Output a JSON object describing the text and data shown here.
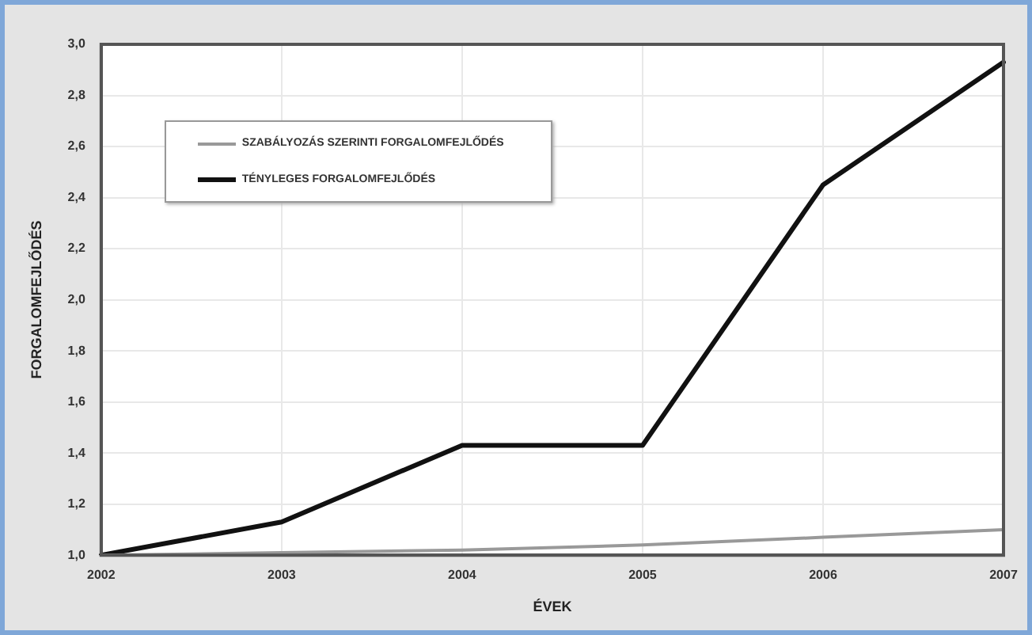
{
  "chart_data": {
    "type": "line",
    "xlabel": "ÉVEK",
    "ylabel": "FORGALOMFEJLŐDÉS",
    "categories": [
      "2002",
      "2003",
      "2004",
      "2005",
      "2006",
      "2007"
    ],
    "series": [
      {
        "name": "SZABÁLYOZÁS SZERINTI FORGALOMFEJLŐDÉS",
        "color": "#999999",
        "values": [
          1.0,
          1.01,
          1.02,
          1.04,
          1.07,
          1.1
        ]
      },
      {
        "name": "TÉNYLEGES FORGALOMFEJLŐDÉS",
        "color": "#111111",
        "values": [
          1.0,
          1.13,
          1.43,
          1.43,
          2.45,
          2.93
        ]
      }
    ],
    "ylim": [
      1.0,
      3.0
    ],
    "yticks": [
      {
        "value": 1.0,
        "label": "1,0"
      },
      {
        "value": 1.2,
        "label": "1,2"
      },
      {
        "value": 1.4,
        "label": "1,4"
      },
      {
        "value": 1.6,
        "label": "1,6"
      },
      {
        "value": 1.8,
        "label": "1,8"
      },
      {
        "value": 2.0,
        "label": "2,0"
      },
      {
        "value": 2.2,
        "label": "2,2"
      },
      {
        "value": 2.4,
        "label": "2,4"
      },
      {
        "value": 2.6,
        "label": "2,6"
      },
      {
        "value": 2.8,
        "label": "2,8"
      },
      {
        "value": 3.0,
        "label": "3,0"
      }
    ],
    "grid": true,
    "legend": "top left",
    "marker": "none",
    "line_style": "solid"
  }
}
